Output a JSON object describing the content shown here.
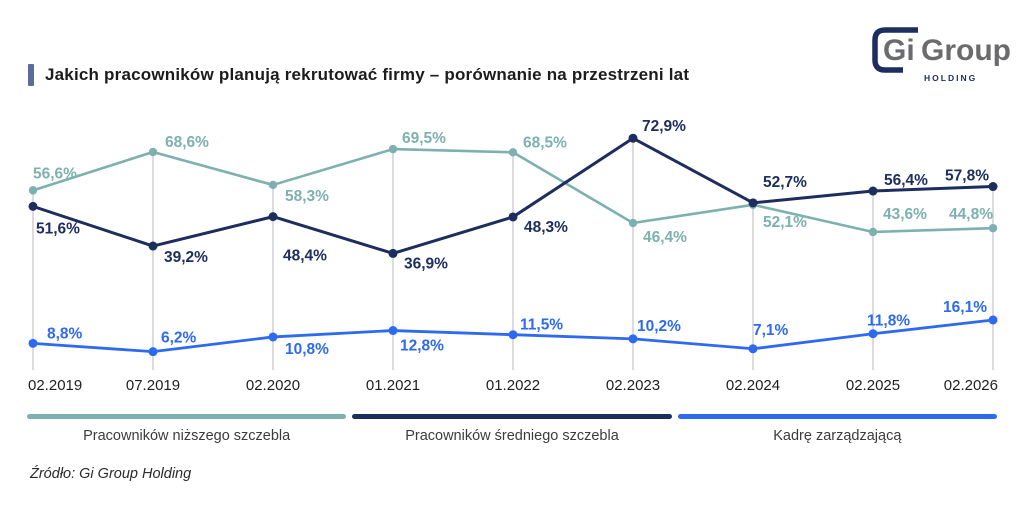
{
  "header": {
    "title": "Jakich pracowników planują rekrutować firmy – porównanie na przestrzeni lat",
    "logo": {
      "part1": "Gi",
      "part2": "Group",
      "subtitle": "HOLDING"
    }
  },
  "source": "Źródło: Gi Group Holding",
  "colors": {
    "teal": "#7db1af",
    "navy": "#1c2d5e",
    "blue": "#2e6af0",
    "grid": "#c8c8c8",
    "accent": "#5c6b9c",
    "logo_gray": "#6b6b6e",
    "axis_text": "#1f1f1f"
  },
  "chart_data": {
    "type": "line",
    "title": "Jakich pracowników planują rekrutować firmy – porównanie na przestrzeni lat",
    "categories": [
      "02.2019",
      "07.2019",
      "02.2020",
      "01.2021",
      "01.2022",
      "02.2023",
      "02.2024",
      "02.2025",
      "02.2026"
    ],
    "series": [
      {
        "name": "Pracowników niższego szczebla",
        "color_key": "teal",
        "values": [
          56.6,
          68.6,
          58.3,
          69.5,
          68.5,
          46.4,
          52.1,
          43.6,
          44.8
        ]
      },
      {
        "name": "Pracowników średniego szczebla",
        "color_key": "navy",
        "values": [
          51.6,
          39.2,
          48.4,
          36.9,
          48.3,
          72.9,
          52.7,
          56.4,
          57.8
        ]
      },
      {
        "name": "Kadrę zarządzającą",
        "color_key": "blue",
        "values": [
          8.8,
          6.2,
          10.8,
          12.8,
          11.5,
          10.2,
          7.1,
          11.8,
          16.1
        ]
      }
    ],
    "value_suffix": "%",
    "decimal_separator": ",",
    "ylim": [
      0,
      80
    ],
    "grid": "vertical-per-category",
    "legend_position": "bottom",
    "point_labels": "shown-at-every-point"
  }
}
